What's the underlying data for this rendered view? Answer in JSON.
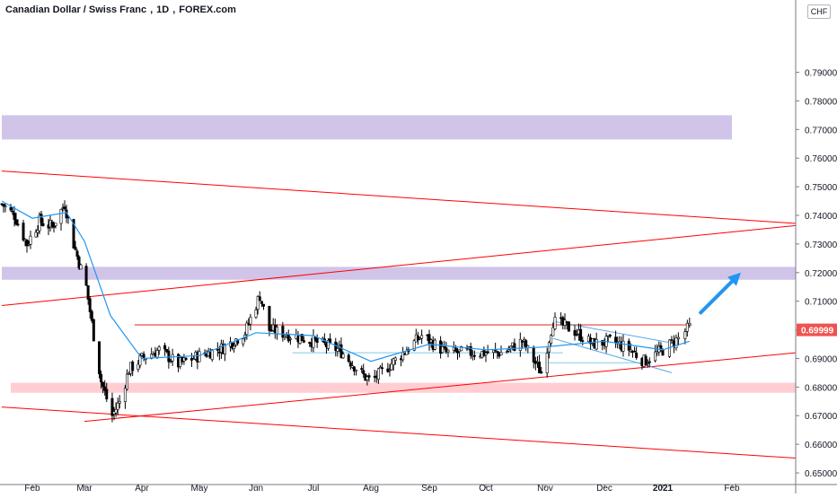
{
  "header": {
    "symbol_name": "Canadian Dollar / Swiss Franc",
    "interval": "1D",
    "exchange": "FOREX.com",
    "currency_button": "CHF"
  },
  "colors": {
    "up_candle": "#000000",
    "down_candle": "#000000",
    "ma_line": "#2196f3",
    "trend_line": "#ff0000",
    "supply_zone": "#d1c4e9",
    "demand_zone": "#ffcdd2",
    "price_label_bg": "#ef5350",
    "arrow": "#2196f3"
  },
  "chart_data": {
    "type": "candlestick",
    "title": "",
    "xlabel": "",
    "ylabel": "",
    "ylim": [
      0.6475,
      0.8115
    ],
    "x_ticks": [
      "Feb",
      "Mar",
      "Apr",
      "May",
      "Jun",
      "Jul",
      "Aug",
      "Sep",
      "Oct",
      "Nov",
      "Dec",
      "2021",
      "Feb"
    ],
    "x_tick_dates": [
      "2020-02-01",
      "2020-03-01",
      "2020-04-01",
      "2020-05-01",
      "2020-06-01",
      "2020-07-01",
      "2020-08-01",
      "2020-09-01",
      "2020-10-01",
      "2020-11-01",
      "2020-12-01",
      "2021-01-01",
      "2021-02-01"
    ],
    "y_ticks": [
      "0.79000",
      "0.78000",
      "0.77000",
      "0.76000",
      "0.75000",
      "0.74000",
      "0.73000",
      "0.72000",
      "0.71000",
      "0.70000",
      "0.69000",
      "0.68000",
      "0.67000",
      "0.66000",
      "0.65000"
    ],
    "last_price_label": "0.69999",
    "price_path": [
      [
        "2020-01-15",
        0.744
      ],
      [
        "2020-01-22",
        0.74
      ],
      [
        "2020-01-29",
        0.73
      ],
      [
        "2020-02-05",
        0.738
      ],
      [
        "2020-02-12",
        0.736
      ],
      [
        "2020-02-19",
        0.744
      ],
      [
        "2020-02-24",
        0.73
      ],
      [
        "2020-03-02",
        0.715
      ],
      [
        "2020-03-06",
        0.698
      ],
      [
        "2020-03-10",
        0.682
      ],
      [
        "2020-03-16",
        0.67
      ],
      [
        "2020-03-20",
        0.675
      ],
      [
        "2020-03-25",
        0.686
      ],
      [
        "2020-04-01",
        0.69
      ],
      [
        "2020-04-10",
        0.693
      ],
      [
        "2020-04-20",
        0.688
      ],
      [
        "2020-05-01",
        0.691
      ],
      [
        "2020-05-15",
        0.694
      ],
      [
        "2020-05-26",
        0.699
      ],
      [
        "2020-06-03",
        0.712
      ],
      [
        "2020-06-08",
        0.7
      ],
      [
        "2020-06-20",
        0.698
      ],
      [
        "2020-07-01",
        0.696
      ],
      [
        "2020-07-15",
        0.693
      ],
      [
        "2020-07-28",
        0.684
      ],
      [
        "2020-08-01",
        0.682
      ],
      [
        "2020-08-15",
        0.69
      ],
      [
        "2020-08-28",
        0.698
      ],
      [
        "2020-09-10",
        0.692
      ],
      [
        "2020-09-25",
        0.692
      ],
      [
        "2020-10-10",
        0.692
      ],
      [
        "2020-10-20",
        0.696
      ],
      [
        "2020-10-30",
        0.685
      ],
      [
        "2020-11-05",
        0.703
      ],
      [
        "2020-11-15",
        0.7
      ],
      [
        "2020-11-25",
        0.695
      ],
      [
        "2020-12-05",
        0.696
      ],
      [
        "2020-12-15",
        0.693
      ],
      [
        "2020-12-22",
        0.689
      ],
      [
        "2021-01-01",
        0.693
      ],
      [
        "2021-01-08",
        0.697
      ],
      [
        "2021-01-13",
        0.701
      ]
    ],
    "moving_average": [
      [
        "2020-01-15",
        0.745
      ],
      [
        "2020-02-01",
        0.739
      ],
      [
        "2020-02-20",
        0.741
      ],
      [
        "2020-03-01",
        0.731
      ],
      [
        "2020-03-15",
        0.705
      ],
      [
        "2020-04-01",
        0.69
      ],
      [
        "2020-05-01",
        0.691
      ],
      [
        "2020-06-01",
        0.699
      ],
      [
        "2020-07-01",
        0.698
      ],
      [
        "2020-08-01",
        0.689
      ],
      [
        "2020-09-01",
        0.695
      ],
      [
        "2020-10-01",
        0.693
      ],
      [
        "2020-11-01",
        0.694
      ],
      [
        "2020-12-01",
        0.696
      ],
      [
        "2021-01-01",
        0.693
      ],
      [
        "2021-01-13",
        0.696
      ]
    ],
    "zones": [
      {
        "kind": "supply",
        "from": "2020-01-15",
        "to": "2021-02-01",
        "low": 0.7665,
        "high": 0.775
      },
      {
        "kind": "supply",
        "from": "2020-01-15",
        "to": "2021-03-15",
        "low": 0.7175,
        "high": 0.722
      },
      {
        "kind": "demand",
        "from": "2020-01-20",
        "to": "2021-03-15",
        "low": 0.678,
        "high": 0.6815
      }
    ],
    "trend_lines": [
      {
        "from": [
          "2020-01-15",
          0.7555
        ],
        "to": [
          "2021-03-15",
          0.7365
        ]
      },
      {
        "from": [
          "2020-01-15",
          0.7085
        ],
        "to": [
          "2021-03-15",
          0.7375
        ]
      },
      {
        "from": [
          "2020-03-01",
          0.668
        ],
        "to": [
          "2021-03-15",
          0.693
        ]
      },
      {
        "from": [
          "2020-01-15",
          0.673
        ],
        "to": [
          "2021-03-15",
          0.6545
        ]
      }
    ],
    "horizontal_lines": [
      {
        "from": "2020-03-28",
        "to": "2021-01-14",
        "value": 0.7017
      },
      {
        "from": "2020-06-20",
        "to": "2020-11-10",
        "value": 0.692
      },
      {
        "from": "2020-11-01",
        "to": "2020-12-25",
        "value": 0.6885
      }
    ],
    "channel_lines": [
      {
        "from": [
          "2020-11-05",
          0.703
        ],
        "to": [
          "2021-01-08",
          0.695
        ]
      },
      {
        "from": [
          "2020-11-05",
          0.697
        ],
        "to": [
          "2021-01-05",
          0.685
        ]
      }
    ],
    "arrow": {
      "from": [
        "2021-01-18",
        0.706
      ],
      "to": [
        "2021-02-05",
        0.72
      ]
    }
  }
}
